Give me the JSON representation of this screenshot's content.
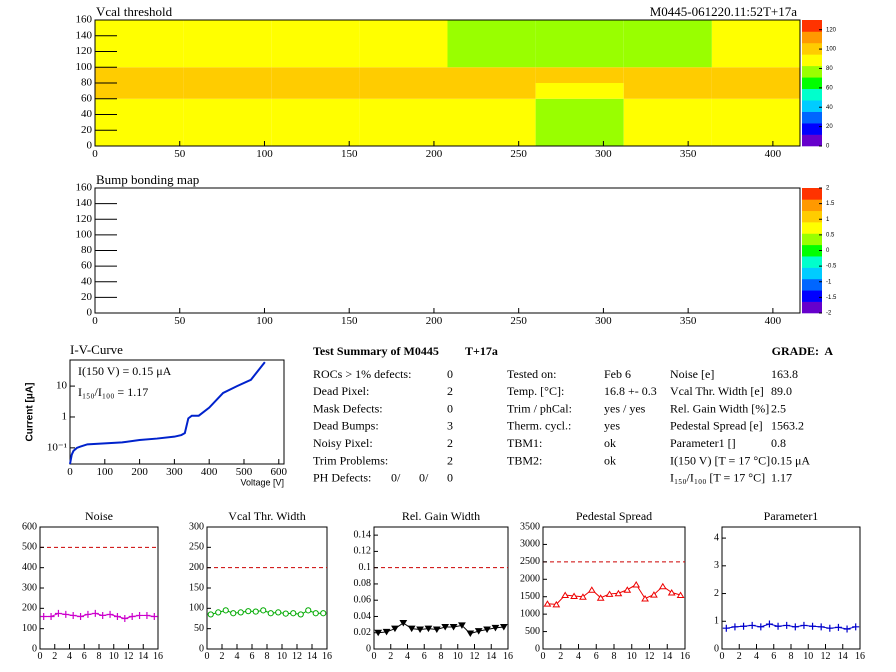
{
  "summary": {
    "title": "Test Summary of M0445",
    "tag": "T+17a",
    "grade": "GRADE:  A",
    "left": [
      [
        "ROCs > 1% defects:",
        "0"
      ],
      [
        "Dead Pixel:",
        "2"
      ],
      [
        "Mask Defects:",
        "0"
      ],
      [
        "Dead Bumps:",
        "3"
      ],
      [
        "Noisy Pixel:",
        "2"
      ],
      [
        "Trim Problems:",
        "2"
      ]
    ],
    "ph": {
      "label": "PH Defects:",
      "values": [
        "0/",
        "0/",
        "0"
      ],
      "colors": [
        "#000000",
        "#dd0000",
        "#0000cc"
      ]
    },
    "middle": [
      [
        "Tested on:",
        "Feb 6"
      ],
      [
        "Temp. [°C]:",
        "16.8 +- 0.3"
      ],
      [
        "Trim / phCal:",
        "yes / yes"
      ],
      [
        "Therm. cycl.:",
        "yes"
      ],
      [
        "TBM1:",
        "ok"
      ],
      [
        "TBM2:",
        "ok"
      ]
    ],
    "right": [
      [
        "Noise [e]",
        "163.8"
      ],
      [
        "Vcal Thr. Width [e]",
        "89.0"
      ],
      [
        "Rel. Gain Width [%]",
        "2.5"
      ],
      [
        "Pedestal Spread [e]",
        "1563.2"
      ],
      [
        "Parameter1 []",
        "0.8"
      ],
      [
        "I(150 V) [T = 17 °C]",
        "0.15 μA"
      ],
      [
        "I₁₅₀/I₁₀₀ [T = 17 °C]",
        "1.17"
      ]
    ]
  },
  "chart_data": [
    {
      "type": "heatmap",
      "title": "Vcal threshold",
      "annotation": "M0445-061220.11:52T+17a",
      "x_edges": [
        0,
        52,
        104,
        156,
        208,
        260,
        312,
        364,
        416
      ],
      "y_edges": [
        0,
        60,
        80,
        100,
        160
      ],
      "z": [
        [
          88,
          85,
          88,
          86,
          84,
          80,
          84,
          88
        ],
        [
          95,
          98,
          100,
          96,
          100,
          92,
          96,
          98
        ],
        [
          100,
          104,
          106,
          100,
          104,
          96,
          100,
          100
        ],
        [
          86,
          84,
          86,
          88,
          82,
          74,
          80,
          84
        ]
      ],
      "xlim": [
        0,
        416
      ],
      "ylim": [
        0,
        160
      ],
      "xticks": [
        0,
        50,
        100,
        150,
        200,
        250,
        300,
        350,
        400
      ],
      "yticks": [
        0,
        20,
        40,
        60,
        80,
        100,
        120,
        140,
        160
      ],
      "zlim": [
        0,
        130
      ],
      "zticks": [
        0,
        20,
        40,
        60,
        80,
        100,
        120
      ],
      "palette": [
        "#6600cc",
        "#0000ff",
        "#0066ff",
        "#00ccff",
        "#00ffcc",
        "#00ff00",
        "#99ff00",
        "#ffff00",
        "#ffcc00",
        "#ff9900",
        "#ff3300"
      ]
    },
    {
      "type": "heatmap",
      "title": "Bump bonding map",
      "xlim": [
        0,
        416
      ],
      "ylim": [
        0,
        160
      ],
      "xticks": [
        0,
        50,
        100,
        150,
        200,
        250,
        300,
        350,
        400
      ],
      "yticks": [
        0,
        20,
        40,
        60,
        80,
        100,
        120,
        140,
        160
      ],
      "zlim": [
        -2,
        2
      ],
      "zticks": [
        -2,
        -1.5,
        -1,
        -0.5,
        0,
        0.5,
        1,
        1.5,
        2
      ],
      "palette": [
        "#6600cc",
        "#0000ff",
        "#0066ff",
        "#00ccff",
        "#00ffcc",
        "#00ff00",
        "#99ff00",
        "#ffff00",
        "#ffcc00",
        "#ff9900",
        "#ff3300"
      ]
    },
    {
      "type": "line",
      "title": "I-V-Curve",
      "x_label": "Voltage [V]",
      "y_label": "Current [μA]",
      "annotations": [
        "I(150 V) = 0.15 μA",
        "I₁₅₀/I₁₀₀ =  1.17"
      ],
      "log_y": true,
      "xlim": [
        0,
        615
      ],
      "ylim": [
        0.03,
        70
      ],
      "xticks": [
        0,
        100,
        200,
        300,
        400,
        500,
        600
      ],
      "yticks": [
        {
          "value": 0.1,
          "label": "10⁻¹"
        },
        1,
        10
      ],
      "series": [
        {
          "color": "#0022cc",
          "x": [
            0,
            5,
            10,
            20,
            30,
            50,
            100,
            150,
            200,
            250,
            300,
            320,
            330,
            340,
            350,
            370,
            400,
            440,
            480,
            520,
            560
          ],
          "values": [
            0.03,
            0.06,
            0.08,
            0.1,
            0.11,
            0.13,
            0.14,
            0.15,
            0.18,
            0.2,
            0.23,
            0.26,
            0.3,
            0.9,
            1.1,
            1.1,
            2.0,
            6,
            10,
            16,
            60
          ]
        }
      ]
    },
    {
      "type": "line",
      "title": "Noise",
      "xlim": [
        0,
        16
      ],
      "ylim": [
        0,
        600
      ],
      "xticks": [
        0,
        2,
        4,
        6,
        8,
        10,
        12,
        14,
        16
      ],
      "yticks": [
        0,
        100,
        200,
        300,
        400,
        500,
        600
      ],
      "ref_line": 500,
      "ref_color": "#cc0000",
      "series": [
        {
          "color": "#cc00cc",
          "marker": "plus",
          "x": [
            0.5,
            1.5,
            2.5,
            3.5,
            4.5,
            5.5,
            6.5,
            7.5,
            8.5,
            9.5,
            10.5,
            11.5,
            12.5,
            13.5,
            14.5,
            15.5
          ],
          "values": [
            160,
            160,
            175,
            170,
            165,
            160,
            170,
            175,
            165,
            170,
            160,
            150,
            160,
            165,
            165,
            160
          ]
        }
      ]
    },
    {
      "type": "line",
      "title": "Vcal Thr. Width",
      "xlim": [
        0,
        16
      ],
      "ylim": [
        0,
        300
      ],
      "xticks": [
        0,
        2,
        4,
        6,
        8,
        10,
        12,
        14,
        16
      ],
      "yticks": [
        0,
        50,
        100,
        150,
        200,
        250,
        300
      ],
      "ref_line": 200,
      "ref_color": "#cc0000",
      "series": [
        {
          "color": "#00aa00",
          "marker": "circle",
          "x": [
            0.5,
            1.5,
            2.5,
            3.5,
            4.5,
            5.5,
            6.5,
            7.5,
            8.5,
            9.5,
            10.5,
            11.5,
            12.5,
            13.5,
            14.5,
            15.5
          ],
          "values": [
            85,
            90,
            95,
            88,
            90,
            93,
            92,
            95,
            88,
            90,
            87,
            88,
            85,
            95,
            88,
            88
          ]
        }
      ]
    },
    {
      "type": "line",
      "title": "Rel. Gain Width",
      "xlim": [
        0,
        16
      ],
      "ylim": [
        0,
        0.15
      ],
      "xticks": [
        0,
        2,
        4,
        6,
        8,
        10,
        12,
        14,
        16
      ],
      "yticks": [
        0,
        0.02,
        0.04,
        0.06,
        0.08,
        0.1,
        0.12,
        0.14
      ],
      "ref_line": 0.1,
      "ref_color": "#cc0000",
      "series": [
        {
          "color": "#000000",
          "marker": "triangle-down",
          "x": [
            0.5,
            1.5,
            2.5,
            3.5,
            4.5,
            5.5,
            6.5,
            7.5,
            8.5,
            9.5,
            10.5,
            11.5,
            12.5,
            13.5,
            14.5,
            15.5
          ],
          "values": [
            0.02,
            0.021,
            0.025,
            0.032,
            0.025,
            0.024,
            0.025,
            0.024,
            0.027,
            0.027,
            0.029,
            0.019,
            0.022,
            0.024,
            0.026,
            0.027
          ]
        }
      ]
    },
    {
      "type": "line",
      "title": "Pedestal Spread",
      "xlim": [
        0,
        16
      ],
      "ylim": [
        0,
        3500
      ],
      "xticks": [
        0,
        2,
        4,
        6,
        8,
        10,
        12,
        14,
        16
      ],
      "yticks": [
        0,
        500,
        1000,
        1500,
        2000,
        2500,
        3000,
        3500
      ],
      "ref_line": 2500,
      "ref_color": "#cc0000",
      "series": [
        {
          "color": "#ee0000",
          "marker": "triangle",
          "x": [
            0.5,
            1.5,
            2.5,
            3.5,
            4.5,
            5.5,
            6.5,
            7.5,
            8.5,
            9.5,
            10.5,
            11.5,
            12.5,
            13.5,
            14.5,
            15.5
          ],
          "values": [
            1300,
            1280,
            1550,
            1520,
            1500,
            1700,
            1470,
            1580,
            1600,
            1700,
            1850,
            1450,
            1560,
            1800,
            1620,
            1550
          ]
        }
      ]
    },
    {
      "type": "line",
      "title": "Parameter1",
      "xlim": [
        0,
        16
      ],
      "ylim": [
        0,
        4.4
      ],
      "xticks": [
        0,
        2,
        4,
        6,
        8,
        10,
        12,
        14,
        16
      ],
      "yticks": [
        0,
        1,
        2,
        3,
        4
      ],
      "series": [
        {
          "color": "#0000cc",
          "marker": "plus",
          "x": [
            0.5,
            1.5,
            2.5,
            3.5,
            4.5,
            5.5,
            6.5,
            7.5,
            8.5,
            9.5,
            10.5,
            11.5,
            12.5,
            13.5,
            14.5,
            15.5
          ],
          "values": [
            0.75,
            0.8,
            0.82,
            0.85,
            0.8,
            0.9,
            0.82,
            0.85,
            0.8,
            0.85,
            0.82,
            0.8,
            0.75,
            0.78,
            0.72,
            0.8
          ]
        }
      ]
    }
  ]
}
